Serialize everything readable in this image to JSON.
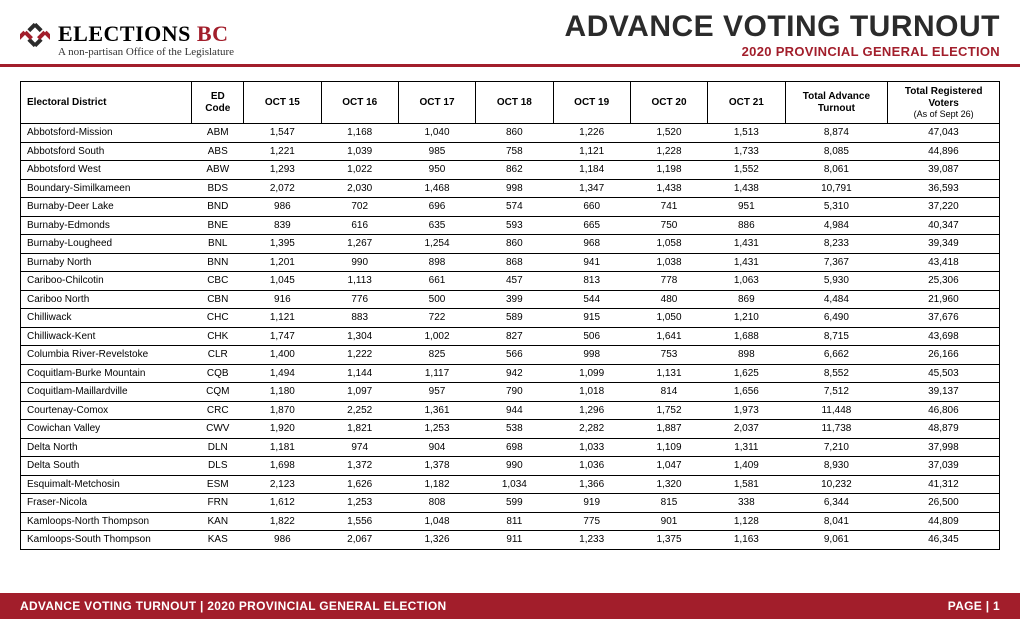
{
  "header": {
    "logo_word_elections": "ELECTIONS",
    "logo_word_bc": "BC",
    "tagline": "A non-partisan Office of the Legislature",
    "title": "ADVANCE VOTING TURNOUT",
    "subtitle": "2020 PROVINCIAL GENERAL ELECTION"
  },
  "colors": {
    "accent": "#a21e2b",
    "text": "#2b2b2b"
  },
  "table": {
    "columns": {
      "ed": "Electoral District",
      "code_top": "ED",
      "code_bot": "Code",
      "oct15": "OCT 15",
      "oct16": "OCT 16",
      "oct17": "OCT 17",
      "oct18": "OCT 18",
      "oct19": "OCT 19",
      "oct20": "OCT 20",
      "oct21": "OCT 21",
      "total_top": "Total Advance",
      "total_bot": "Turnout",
      "reg_top": "Total Registered",
      "reg_mid": "Voters",
      "reg_bot": "(As of Sept 26)"
    },
    "col_widths_pct": [
      17.5,
      5.3,
      7.9,
      7.9,
      7.9,
      7.9,
      7.9,
      7.9,
      7.9,
      10.5,
      11.4
    ],
    "rows": [
      {
        "name": "Abbotsford-Mission",
        "code": "ABM",
        "d": [
          "1,547",
          "1,168",
          "1,040",
          "860",
          "1,226",
          "1,520",
          "1,513"
        ],
        "tot": "8,874",
        "reg": "47,043"
      },
      {
        "name": "Abbotsford South",
        "code": "ABS",
        "d": [
          "1,221",
          "1,039",
          "985",
          "758",
          "1,121",
          "1,228",
          "1,733"
        ],
        "tot": "8,085",
        "reg": "44,896"
      },
      {
        "name": "Abbotsford West",
        "code": "ABW",
        "d": [
          "1,293",
          "1,022",
          "950",
          "862",
          "1,184",
          "1,198",
          "1,552"
        ],
        "tot": "8,061",
        "reg": "39,087"
      },
      {
        "name": "Boundary-Similkameen",
        "code": "BDS",
        "d": [
          "2,072",
          "2,030",
          "1,468",
          "998",
          "1,347",
          "1,438",
          "1,438"
        ],
        "tot": "10,791",
        "reg": "36,593"
      },
      {
        "name": "Burnaby-Deer Lake",
        "code": "BND",
        "d": [
          "986",
          "702",
          "696",
          "574",
          "660",
          "741",
          "951"
        ],
        "tot": "5,310",
        "reg": "37,220"
      },
      {
        "name": "Burnaby-Edmonds",
        "code": "BNE",
        "d": [
          "839",
          "616",
          "635",
          "593",
          "665",
          "750",
          "886"
        ],
        "tot": "4,984",
        "reg": "40,347"
      },
      {
        "name": "Burnaby-Lougheed",
        "code": "BNL",
        "d": [
          "1,395",
          "1,267",
          "1,254",
          "860",
          "968",
          "1,058",
          "1,431"
        ],
        "tot": "8,233",
        "reg": "39,349"
      },
      {
        "name": "Burnaby North",
        "code": "BNN",
        "d": [
          "1,201",
          "990",
          "898",
          "868",
          "941",
          "1,038",
          "1,431"
        ],
        "tot": "7,367",
        "reg": "43,418"
      },
      {
        "name": "Cariboo-Chilcotin",
        "code": "CBC",
        "d": [
          "1,045",
          "1,113",
          "661",
          "457",
          "813",
          "778",
          "1,063"
        ],
        "tot": "5,930",
        "reg": "25,306"
      },
      {
        "name": "Cariboo North",
        "code": "CBN",
        "d": [
          "916",
          "776",
          "500",
          "399",
          "544",
          "480",
          "869"
        ],
        "tot": "4,484",
        "reg": "21,960"
      },
      {
        "name": "Chilliwack",
        "code": "CHC",
        "d": [
          "1,121",
          "883",
          "722",
          "589",
          "915",
          "1,050",
          "1,210"
        ],
        "tot": "6,490",
        "reg": "37,676"
      },
      {
        "name": "Chilliwack-Kent",
        "code": "CHK",
        "d": [
          "1,747",
          "1,304",
          "1,002",
          "827",
          "506",
          "1,641",
          "1,688"
        ],
        "tot": "8,715",
        "reg": "43,698"
      },
      {
        "name": "Columbia River-Revelstoke",
        "code": "CLR",
        "d": [
          "1,400",
          "1,222",
          "825",
          "566",
          "998",
          "753",
          "898"
        ],
        "tot": "6,662",
        "reg": "26,166"
      },
      {
        "name": "Coquitlam-Burke Mountain",
        "code": "CQB",
        "d": [
          "1,494",
          "1,144",
          "1,117",
          "942",
          "1,099",
          "1,131",
          "1,625"
        ],
        "tot": "8,552",
        "reg": "45,503"
      },
      {
        "name": "Coquitlam-Maillardville",
        "code": "CQM",
        "d": [
          "1,180",
          "1,097",
          "957",
          "790",
          "1,018",
          "814",
          "1,656"
        ],
        "tot": "7,512",
        "reg": "39,137"
      },
      {
        "name": "Courtenay-Comox",
        "code": "CRC",
        "d": [
          "1,870",
          "2,252",
          "1,361",
          "944",
          "1,296",
          "1,752",
          "1,973"
        ],
        "tot": "11,448",
        "reg": "46,806"
      },
      {
        "name": "Cowichan Valley",
        "code": "CWV",
        "d": [
          "1,920",
          "1,821",
          "1,253",
          "538",
          "2,282",
          "1,887",
          "2,037"
        ],
        "tot": "11,738",
        "reg": "48,879"
      },
      {
        "name": "Delta North",
        "code": "DLN",
        "d": [
          "1,181",
          "974",
          "904",
          "698",
          "1,033",
          "1,109",
          "1,311"
        ],
        "tot": "7,210",
        "reg": "37,998"
      },
      {
        "name": "Delta South",
        "code": "DLS",
        "d": [
          "1,698",
          "1,372",
          "1,378",
          "990",
          "1,036",
          "1,047",
          "1,409"
        ],
        "tot": "8,930",
        "reg": "37,039"
      },
      {
        "name": "Esquimalt-Metchosin",
        "code": "ESM",
        "d": [
          "2,123",
          "1,626",
          "1,182",
          "1,034",
          "1,366",
          "1,320",
          "1,581"
        ],
        "tot": "10,232",
        "reg": "41,312"
      },
      {
        "name": "Fraser-Nicola",
        "code": "FRN",
        "d": [
          "1,612",
          "1,253",
          "808",
          "599",
          "919",
          "815",
          "338"
        ],
        "tot": "6,344",
        "reg": "26,500"
      },
      {
        "name": "Kamloops-North Thompson",
        "code": "KAN",
        "d": [
          "1,822",
          "1,556",
          "1,048",
          "811",
          "775",
          "901",
          "1,128"
        ],
        "tot": "8,041",
        "reg": "44,809"
      },
      {
        "name": "Kamloops-South Thompson",
        "code": "KAS",
        "d": [
          "986",
          "2,067",
          "1,326",
          "911",
          "1,233",
          "1,375",
          "1,163"
        ],
        "tot": "9,061",
        "reg": "46,345"
      }
    ]
  },
  "footer": {
    "left": "ADVANCE VOTING TURNOUT  |  2020 PROVINCIAL GENERAL ELECTION",
    "right": "PAGE  |  1"
  }
}
